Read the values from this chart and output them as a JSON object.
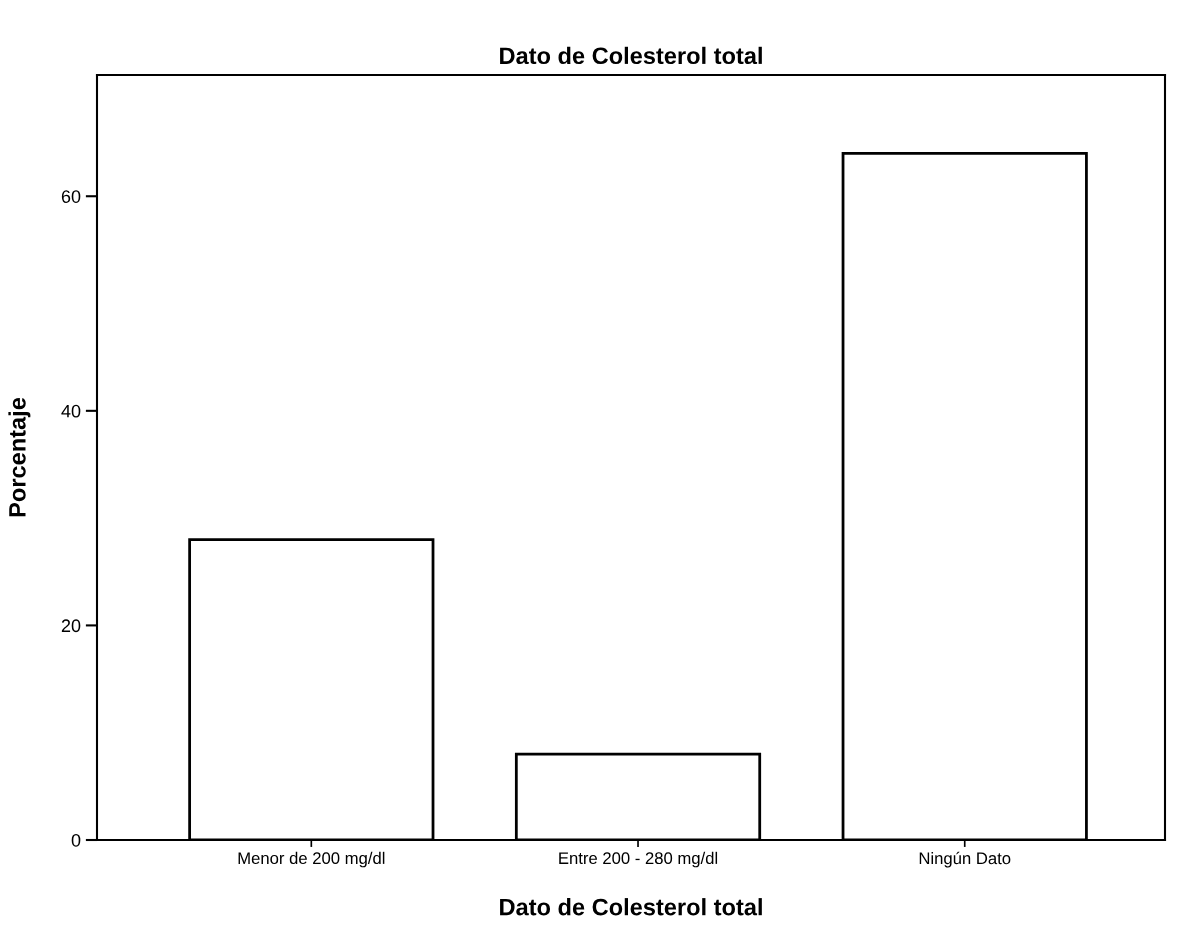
{
  "chart_data": {
    "type": "bar",
    "title": "Dato de Colesterol total",
    "xlabel": "Dato de Colesterol total",
    "ylabel": "Porcentaje",
    "categories": [
      "Menor de 200 mg/dl",
      "Entre 200 - 280 mg/dl",
      "Ningún Dato"
    ],
    "values": [
      28,
      8,
      64
    ],
    "color": "#ffffff",
    "ylim": [
      0,
      71.3
    ],
    "yticks": [
      0,
      20,
      40,
      60
    ],
    "grid": false,
    "legend": false
  }
}
